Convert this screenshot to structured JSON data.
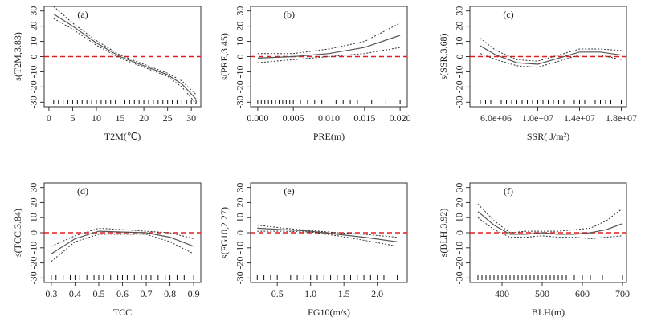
{
  "chart_data": [
    {
      "type": "line",
      "panel_label": "(a)",
      "xlabel": "T2M(℃)",
      "ylabel": "s(T2M,3.83)",
      "x": [
        1,
        5,
        10,
        15,
        20,
        25,
        28,
        31
      ],
      "series": [
        {
          "color": "#555555",
          "style": "solid",
          "values": [
            28,
            20,
            9,
            0,
            -6,
            -12,
            -18,
            -28
          ]
        },
        {
          "color": "#333333",
          "style": "dotted",
          "values": [
            33,
            22,
            10.5,
            1,
            -5,
            -11,
            -16,
            -25
          ]
        },
        {
          "color": "#333333",
          "style": "dotted",
          "values": [
            25,
            18,
            7.5,
            -1,
            -7,
            -13,
            -20,
            -31
          ]
        }
      ],
      "hline": 0,
      "hline_color": "#e02020",
      "rug": [
        1,
        2,
        3,
        4,
        5,
        6,
        7,
        8,
        9,
        10,
        11,
        12,
        13,
        14,
        15,
        16,
        17,
        18,
        19,
        20,
        21,
        22,
        23,
        24,
        25,
        26,
        27,
        28,
        29,
        30,
        31
      ],
      "xlim": [
        -1,
        32
      ],
      "xticks": [
        0,
        5,
        10,
        15,
        20,
        25,
        30
      ],
      "ylim": [
        -33,
        33
      ],
      "yticks": [
        -30,
        -20,
        -10,
        0,
        10,
        20,
        30
      ]
    },
    {
      "type": "line",
      "panel_label": "(b)",
      "xlabel": "PRE(m)",
      "ylabel": "s(PRE,3.45)",
      "x": [
        0,
        0.005,
        0.01,
        0.015,
        0.02
      ],
      "series": [
        {
          "color": "#555555",
          "style": "solid",
          "values": [
            -1,
            0,
            2,
            6,
            14
          ]
        },
        {
          "color": "#333333",
          "style": "dotted",
          "values": [
            2,
            2,
            5,
            10,
            22
          ]
        },
        {
          "color": "#333333",
          "style": "dotted",
          "values": [
            -4,
            -2,
            0,
            2,
            6
          ]
        }
      ],
      "hline": 0,
      "hline_color": "#e02020",
      "rug": [
        0,
        0.0005,
        0.001,
        0.0015,
        0.002,
        0.0025,
        0.003,
        0.0035,
        0.004,
        0.0045,
        0.005,
        0.006,
        0.007,
        0.008,
        0.009,
        0.01,
        0.011,
        0.012,
        0.013,
        0.014,
        0.016,
        0.018,
        0.02
      ],
      "xlim": [
        -0.001,
        0.021
      ],
      "xticks": [
        {
          "value": 0,
          "label": "0.000"
        },
        {
          "value": 0.005,
          "label": "0.005"
        },
        {
          "value": 0.01,
          "label": "0.010"
        },
        {
          "value": 0.015,
          "label": "0.015"
        },
        {
          "value": 0.02,
          "label": "0.020"
        }
      ],
      "ylim": [
        -33,
        33
      ],
      "yticks": [
        -30,
        -20,
        -10,
        0,
        10,
        20,
        30
      ]
    },
    {
      "type": "line",
      "panel_label": "(c)",
      "xlabel": "SSR( J/m²)",
      "ylabel": "s(SSR,3.68)",
      "x": [
        4500000,
        6000000,
        8000000,
        10000000,
        12000000,
        14000000,
        16000000,
        18000000
      ],
      "series": [
        {
          "color": "#555555",
          "style": "solid",
          "values": [
            7,
            1,
            -4,
            -5,
            -1,
            3,
            3,
            1
          ]
        },
        {
          "color": "#333333",
          "style": "dotted",
          "values": [
            12,
            4,
            -2,
            -3,
            1,
            5,
            5,
            4
          ]
        },
        {
          "color": "#333333",
          "style": "dotted",
          "values": [
            2,
            -2,
            -6,
            -7,
            -3,
            1,
            1,
            -2
          ]
        }
      ],
      "hline": 0,
      "hline_color": "#e02020",
      "rug": [
        4500000,
        5000000,
        5500000,
        6000000,
        6500000,
        7000000,
        7500000,
        8000000,
        8500000,
        9000000,
        9500000,
        10000000,
        10500000,
        11000000,
        11500000,
        12000000,
        12500000,
        13000000,
        13500000,
        14000000,
        14500000,
        15000000,
        15500000,
        16000000,
        16500000,
        17000000,
        18000000
      ],
      "xlim": [
        3500000,
        18500000
      ],
      "xticks": [
        {
          "value": 6000000,
          "label": "6.0e+06"
        },
        {
          "value": 10000000,
          "label": "1.0e+07"
        },
        {
          "value": 14000000,
          "label": "1.4e+07"
        },
        {
          "value": 18000000,
          "label": "1.8e+07"
        }
      ],
      "ylim": [
        -33,
        33
      ],
      "yticks": [
        -30,
        -20,
        -10,
        0,
        10,
        20,
        30
      ]
    },
    {
      "type": "line",
      "panel_label": "(d)",
      "xlabel": "TCC",
      "ylabel": "s(TCC,3.84)",
      "x": [
        0.3,
        0.4,
        0.5,
        0.6,
        0.7,
        0.8,
        0.9
      ],
      "series": [
        {
          "color": "#555555",
          "style": "solid",
          "values": [
            -14,
            -4,
            1,
            0.5,
            0,
            -3,
            -9
          ]
        },
        {
          "color": "#333333",
          "style": "dotted",
          "values": [
            -9,
            -2,
            3,
            2,
            1,
            0,
            -4
          ]
        },
        {
          "color": "#333333",
          "style": "dotted",
          "values": [
            -19,
            -6,
            -1,
            -1,
            -1,
            -6,
            -14
          ]
        }
      ],
      "hline": 0,
      "hline_color": "#e02020",
      "rug": [
        0.3,
        0.32,
        0.35,
        0.38,
        0.4,
        0.42,
        0.45,
        0.48,
        0.5,
        0.52,
        0.55,
        0.58,
        0.6,
        0.62,
        0.65,
        0.68,
        0.7,
        0.72,
        0.75,
        0.78,
        0.8,
        0.83,
        0.86,
        0.9
      ],
      "xlim": [
        0.27,
        0.93
      ],
      "xticks": [
        0.3,
        0.4,
        0.5,
        0.6,
        0.7,
        0.8,
        0.9
      ],
      "ylim": [
        -33,
        33
      ],
      "yticks": [
        -30,
        -20,
        -10,
        0,
        10,
        20,
        30
      ]
    },
    {
      "type": "line",
      "panel_label": "(e)",
      "xlabel": "FG10(m/s)",
      "ylabel": "s(FG10,2.27)",
      "x": [
        0.2,
        0.6,
        1,
        1.4,
        1.8,
        2.3
      ],
      "series": [
        {
          "color": "#555555",
          "style": "solid",
          "values": [
            3,
            2,
            1,
            -1,
            -3,
            -6
          ]
        },
        {
          "color": "#333333",
          "style": "dotted",
          "values": [
            5,
            3,
            1.5,
            0,
            -1,
            -3
          ]
        },
        {
          "color": "#333333",
          "style": "dotted",
          "values": [
            1,
            1,
            0.5,
            -2,
            -5,
            -9
          ]
        }
      ],
      "hline": 0,
      "hline_color": "#e02020",
      "rug": [
        0.2,
        0.3,
        0.4,
        0.5,
        0.6,
        0.7,
        0.8,
        0.9,
        1,
        1.1,
        1.2,
        1.3,
        1.4,
        1.5,
        1.6,
        1.7,
        1.8,
        1.9,
        2,
        2.1,
        2.3
      ],
      "xlim": [
        0.1,
        2.45
      ],
      "xticks": [
        0.5,
        {
          "value": 1,
          "label": "1.0"
        },
        1.5,
        {
          "value": 2,
          "label": "2.0"
        }
      ],
      "ylim": [
        -33,
        33
      ],
      "yticks": [
        -30,
        -20,
        -10,
        0,
        10,
        20,
        30
      ]
    },
    {
      "type": "line",
      "panel_label": "(f)",
      "xlabel": "BLH(m)",
      "ylabel": "s(BLH,3.92)",
      "x": [
        340,
        380,
        420,
        460,
        500,
        540,
        580,
        620,
        660,
        700
      ],
      "series": [
        {
          "color": "#555555",
          "style": "solid",
          "values": [
            14,
            5,
            -1,
            -1,
            0,
            -1,
            -1,
            0,
            2,
            6
          ]
        },
        {
          "color": "#333333",
          "style": "dotted",
          "values": [
            19,
            8,
            0,
            1,
            1,
            1,
            2,
            3,
            8,
            16
          ]
        },
        {
          "color": "#333333",
          "style": "dotted",
          "values": [
            10,
            2,
            -3,
            -3,
            -2,
            -3,
            -3,
            -4,
            -3,
            -2
          ]
        }
      ],
      "hline": 0,
      "hline_color": "#e02020",
      "rug": [
        340,
        350,
        360,
        370,
        380,
        390,
        400,
        410,
        420,
        430,
        440,
        450,
        460,
        470,
        480,
        490,
        500,
        510,
        520,
        530,
        540,
        550,
        560,
        580,
        600,
        620,
        650,
        700
      ],
      "xlim": [
        320,
        710
      ],
      "xticks": [
        400,
        500,
        600,
        700
      ],
      "ylim": [
        -33,
        33
      ],
      "yticks": [
        -30,
        -20,
        -10,
        0,
        10,
        20,
        30
      ]
    }
  ]
}
